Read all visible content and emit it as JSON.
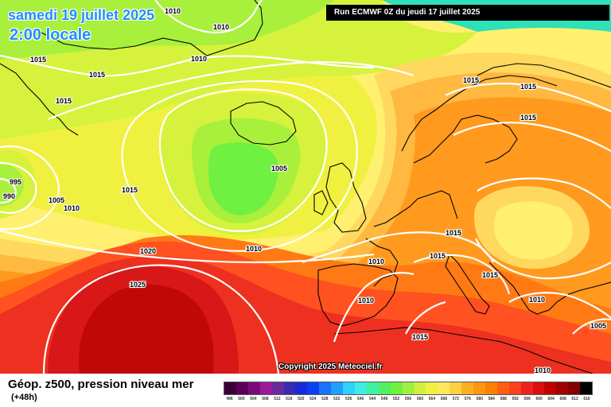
{
  "header": {
    "date_label": "samedi 19 juillet 2025",
    "time_label": "2:00 locale",
    "run_label": "Run ECMWF 0Z du jeudi 17 juillet 2025"
  },
  "copyright": "Copyright 2025 Meteociel.fr",
  "footer": {
    "title": "Géop. z500, pression niveau mer",
    "subtitle": "(+48h)"
  },
  "legend": {
    "ticks": [
      "496",
      "500",
      "504",
      "508",
      "512",
      "516",
      "520",
      "524",
      "528",
      "532",
      "536",
      "540",
      "544",
      "548",
      "552",
      "556",
      "560",
      "564",
      "568",
      "572",
      "576",
      "580",
      "584",
      "588",
      "592",
      "596",
      "600",
      "604",
      "608",
      "612",
      "616"
    ],
    "colors": [
      "#3a0035",
      "#5a005a",
      "#7a0a7a",
      "#9a1a9a",
      "#6a2a9e",
      "#3a2ab0",
      "#1a2ad8",
      "#0a40f0",
      "#1a70ff",
      "#20a0ff",
      "#30d0ff",
      "#40ece0",
      "#40f0a0",
      "#50f060",
      "#70f040",
      "#a0f040",
      "#d0f040",
      "#f0f040",
      "#ffe860",
      "#ffd040",
      "#ffb020",
      "#ff9810",
      "#ff8000",
      "#ff6010",
      "#ff4020",
      "#f02020",
      "#d81010",
      "#c00000",
      "#a00000",
      "#800000",
      "#000000"
    ]
  },
  "map": {
    "colors": {
      "ocean_top": "#2fe0b8",
      "z564": "#a8f03c",
      "z568": "#d6f23c",
      "z572": "#f0f040",
      "z576": "#fff070",
      "z580": "#ffd860",
      "z584": "#ffb840",
      "z588": "#ff9a1e",
      "z592": "#ff7a14",
      "z596": "#ff5220",
      "z600": "#ee3020",
      "z604": "#d81818",
      "z608": "#c00808",
      "land_line": "#000000",
      "isobar_line": "#ffffff"
    },
    "isobar_labels": [
      "1010",
      "1010",
      "1010",
      "1015",
      "1015",
      "1015",
      "1015",
      "1015",
      "1005",
      "995",
      "990",
      "1005",
      "1010",
      "1015",
      "1020",
      "1010",
      "1025",
      "1015",
      "1015",
      "1015",
      "1015",
      "1010",
      "1010",
      "1010",
      "1015",
      "1005",
      "1010"
    ]
  }
}
